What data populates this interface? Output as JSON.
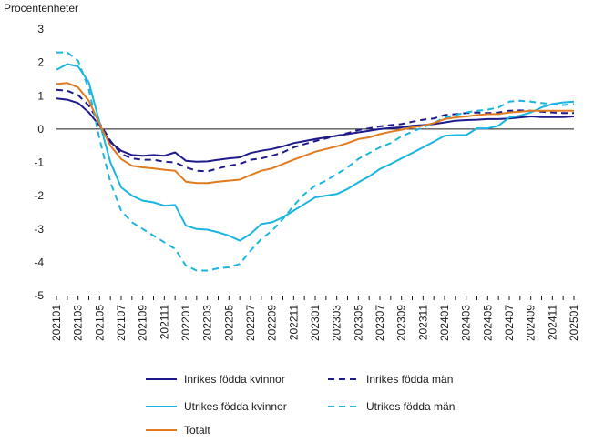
{
  "chart_data": {
    "type": "line",
    "ylabel": "Procentenheter",
    "ylim": [
      -5,
      3
    ],
    "yticks": [
      3,
      2,
      1,
      0,
      -1,
      -2,
      -3,
      -4,
      -5
    ],
    "x": [
      "202101",
      "202102",
      "202103",
      "202104",
      "202105",
      "202106",
      "202107",
      "202108",
      "202109",
      "202110",
      "202111",
      "202112",
      "202201",
      "202202",
      "202203",
      "202204",
      "202205",
      "202206",
      "202207",
      "202208",
      "202209",
      "202210",
      "202211",
      "202212",
      "202301",
      "202302",
      "202303",
      "202304",
      "202305",
      "202306",
      "202307",
      "202308",
      "202309",
      "202310",
      "202311",
      "202312",
      "202401",
      "202402",
      "202403",
      "202404",
      "202405",
      "202406",
      "202407",
      "202408",
      "202409",
      "202410",
      "202411",
      "202412",
      "202501"
    ],
    "xtick_labels": [
      "202101",
      "202103",
      "202105",
      "202107",
      "202109",
      "202111",
      "202201",
      "202203",
      "202205",
      "202207",
      "202209",
      "202211",
      "202301",
      "202303",
      "202305",
      "202307",
      "202309",
      "202311",
      "202401",
      "202403",
      "202405",
      "202407",
      "202409",
      "202411",
      "202501"
    ],
    "grid": false,
    "legend_position": "bottom",
    "series": [
      {
        "name": "Inrikes födda kvinnor",
        "color": "#1f1a8c",
        "dash": "solid",
        "values": [
          0.92,
          0.88,
          0.78,
          0.5,
          0.1,
          -0.4,
          -0.65,
          -0.78,
          -0.8,
          -0.78,
          -0.8,
          -0.7,
          -0.95,
          -0.98,
          -0.97,
          -0.92,
          -0.88,
          -0.85,
          -0.72,
          -0.65,
          -0.6,
          -0.52,
          -0.42,
          -0.36,
          -0.3,
          -0.25,
          -0.2,
          -0.15,
          -0.1,
          -0.05,
          0.0,
          0.03,
          0.05,
          0.1,
          0.12,
          0.15,
          0.2,
          0.25,
          0.27,
          0.28,
          0.3,
          0.3,
          0.32,
          0.35,
          0.38,
          0.36,
          0.36,
          0.36,
          0.38
        ]
      },
      {
        "name": "Inrikes födda män",
        "color": "#1f1a8c",
        "dash": "dashed",
        "values": [
          1.18,
          1.15,
          1.02,
          0.7,
          0.18,
          -0.35,
          -0.75,
          -0.88,
          -0.92,
          -0.92,
          -0.98,
          -1.0,
          -1.15,
          -1.25,
          -1.27,
          -1.18,
          -1.1,
          -1.05,
          -0.92,
          -0.88,
          -0.8,
          -0.7,
          -0.55,
          -0.45,
          -0.36,
          -0.28,
          -0.2,
          -0.12,
          -0.03,
          0.02,
          0.08,
          0.12,
          0.15,
          0.22,
          0.28,
          0.32,
          0.42,
          0.45,
          0.48,
          0.5,
          0.48,
          0.5,
          0.55,
          0.56,
          0.55,
          0.52,
          0.5,
          0.48,
          0.48
        ]
      },
      {
        "name": "Utrikes födda kvinnor",
        "color": "#1ab5e0",
        "dash": "solid",
        "values": [
          1.78,
          1.95,
          1.88,
          1.4,
          0.2,
          -1.0,
          -1.75,
          -2.0,
          -2.15,
          -2.2,
          -2.3,
          -2.28,
          -2.9,
          -3.0,
          -3.02,
          -3.1,
          -3.2,
          -3.35,
          -3.15,
          -2.85,
          -2.8,
          -2.65,
          -2.45,
          -2.25,
          -2.05,
          -2.0,
          -1.95,
          -1.8,
          -1.6,
          -1.42,
          -1.2,
          -1.05,
          -0.88,
          -0.72,
          -0.55,
          -0.38,
          -0.2,
          -0.18,
          -0.18,
          0.02,
          0.02,
          0.1,
          0.35,
          0.4,
          0.5,
          0.65,
          0.75,
          0.8,
          0.82
        ]
      },
      {
        "name": "Utrikes födda män",
        "color": "#1ab5e0",
        "dash": "dashed",
        "values": [
          2.3,
          2.3,
          2.05,
          1.2,
          -0.3,
          -1.6,
          -2.45,
          -2.8,
          -3.0,
          -3.2,
          -3.4,
          -3.6,
          -4.1,
          -4.25,
          -4.25,
          -4.18,
          -4.15,
          -4.05,
          -3.65,
          -3.3,
          -3.05,
          -2.7,
          -2.3,
          -1.95,
          -1.7,
          -1.55,
          -1.35,
          -1.15,
          -0.9,
          -0.72,
          -0.55,
          -0.42,
          -0.22,
          -0.08,
          0.05,
          0.18,
          0.35,
          0.42,
          0.5,
          0.55,
          0.58,
          0.65,
          0.82,
          0.85,
          0.82,
          0.78,
          0.75,
          0.72,
          0.75
        ]
      },
      {
        "name": "Totalt",
        "color": "#e07b1f",
        "dash": "solid",
        "values": [
          1.35,
          1.38,
          1.25,
          0.85,
          0.15,
          -0.5,
          -0.9,
          -1.1,
          -1.15,
          -1.18,
          -1.22,
          -1.25,
          -1.58,
          -1.62,
          -1.62,
          -1.58,
          -1.55,
          -1.52,
          -1.38,
          -1.25,
          -1.18,
          -1.05,
          -0.92,
          -0.8,
          -0.68,
          -0.6,
          -0.52,
          -0.42,
          -0.3,
          -0.25,
          -0.15,
          -0.08,
          -0.02,
          0.05,
          0.1,
          0.18,
          0.3,
          0.35,
          0.38,
          0.42,
          0.45,
          0.45,
          0.5,
          0.52,
          0.55,
          0.55,
          0.55,
          0.55,
          0.55
        ]
      }
    ]
  }
}
